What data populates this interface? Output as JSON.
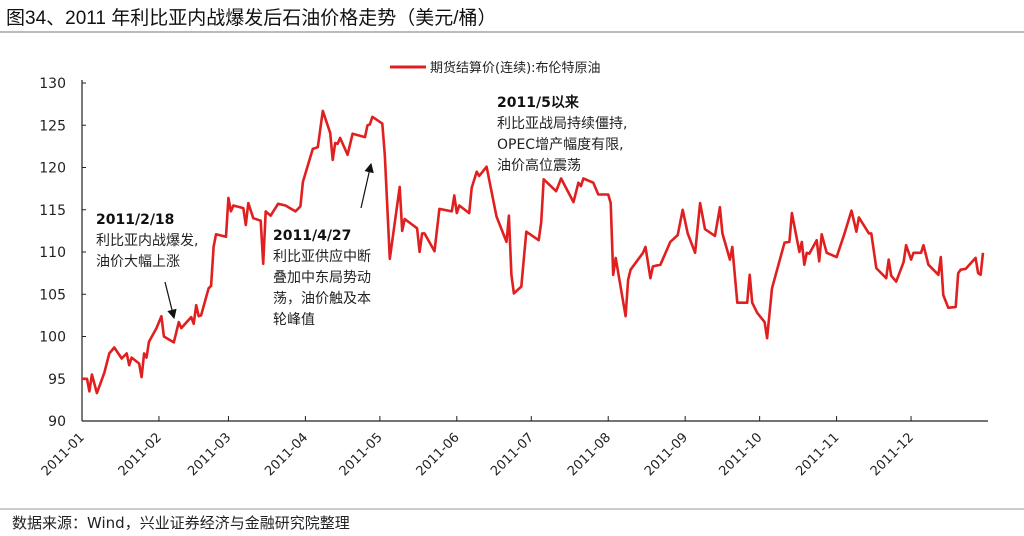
{
  "title": "图34、2011 年利比亚内战爆发后石油价格走势（美元/桶）",
  "footer": "数据来源：Wind，兴业证券经济与金融研究院整理",
  "chart_data": {
    "type": "line",
    "title": "图34、2011 年利比亚内战爆发后石油价格走势（美元/桶）",
    "xlabel": "",
    "ylabel": "",
    "ylim": [
      90,
      130
    ],
    "yticks": [
      90,
      95,
      100,
      105,
      110,
      115,
      120,
      125,
      130
    ],
    "xlim": [
      "2011-01-01",
      "2012-01-01"
    ],
    "xticks": [
      "2011-01",
      "2011-02",
      "2011-03",
      "2011-04",
      "2011-05",
      "2011-06",
      "2011-07",
      "2011-08",
      "2011-09",
      "2011-10",
      "2011-11",
      "2011-12"
    ],
    "grid": false,
    "legend": "top-center",
    "series": [
      {
        "name": "期货结算价(连续):布伦特原油",
        "color": "#e02020",
        "points": [
          [
            "2011-01-01",
            95.0
          ],
          [
            "2011-01-03",
            95.0
          ],
          [
            "2011-01-04",
            93.5
          ],
          [
            "2011-01-05",
            95.5
          ],
          [
            "2011-01-07",
            93.3
          ],
          [
            "2011-01-10",
            95.7
          ],
          [
            "2011-01-12",
            98.0
          ],
          [
            "2011-01-14",
            98.7
          ],
          [
            "2011-01-17",
            97.4
          ],
          [
            "2011-01-19",
            98.0
          ],
          [
            "2011-01-20",
            96.6
          ],
          [
            "2011-01-21",
            97.5
          ],
          [
            "2011-01-24",
            96.8
          ],
          [
            "2011-01-25",
            95.2
          ],
          [
            "2011-01-26",
            98.0
          ],
          [
            "2011-01-27",
            97.5
          ],
          [
            "2011-01-28",
            99.4
          ],
          [
            "2011-01-31",
            101.0
          ],
          [
            "2011-02-02",
            102.4
          ],
          [
            "2011-02-03",
            100.0
          ],
          [
            "2011-02-07",
            99.3
          ],
          [
            "2011-02-09",
            101.7
          ],
          [
            "2011-02-10",
            101.0
          ],
          [
            "2011-02-14",
            102.3
          ],
          [
            "2011-02-15",
            101.5
          ],
          [
            "2011-02-16",
            103.7
          ],
          [
            "2011-02-17",
            102.4
          ],
          [
            "2011-02-18",
            102.5
          ],
          [
            "2011-02-21",
            105.7
          ],
          [
            "2011-02-22",
            106.0
          ],
          [
            "2011-02-23",
            110.6
          ],
          [
            "2011-02-24",
            112.1
          ],
          [
            "2011-02-28",
            111.8
          ],
          [
            "2011-03-01",
            116.4
          ],
          [
            "2011-03-02",
            114.8
          ],
          [
            "2011-03-03",
            115.5
          ],
          [
            "2011-03-07",
            115.2
          ],
          [
            "2011-03-08",
            113.2
          ],
          [
            "2011-03-09",
            115.8
          ],
          [
            "2011-03-11",
            114.0
          ],
          [
            "2011-03-14",
            113.7
          ],
          [
            "2011-03-15",
            108.6
          ],
          [
            "2011-03-16",
            114.8
          ],
          [
            "2011-03-18",
            114.3
          ],
          [
            "2011-03-21",
            115.7
          ],
          [
            "2011-03-24",
            115.5
          ],
          [
            "2011-03-28",
            114.8
          ],
          [
            "2011-03-30",
            115.4
          ],
          [
            "2011-03-31",
            118.3
          ],
          [
            "2011-04-04",
            122.2
          ],
          [
            "2011-04-06",
            122.4
          ],
          [
            "2011-04-08",
            126.7
          ],
          [
            "2011-04-11",
            124.1
          ],
          [
            "2011-04-12",
            120.9
          ],
          [
            "2011-04-13",
            122.9
          ],
          [
            "2011-04-14",
            122.8
          ],
          [
            "2011-04-15",
            123.5
          ],
          [
            "2011-04-18",
            121.5
          ],
          [
            "2011-04-20",
            124.0
          ],
          [
            "2011-04-25",
            123.6
          ],
          [
            "2011-04-26",
            125.0
          ],
          [
            "2011-04-27",
            125.1
          ],
          [
            "2011-04-28",
            126.0
          ],
          [
            "2011-05-02",
            125.2
          ],
          [
            "2011-05-03",
            121.5
          ],
          [
            "2011-05-05",
            109.2
          ],
          [
            "2011-05-09",
            117.7
          ],
          [
            "2011-05-10",
            112.5
          ],
          [
            "2011-05-11",
            113.9
          ],
          [
            "2011-05-16",
            112.8
          ],
          [
            "2011-05-17",
            110.0
          ],
          [
            "2011-05-18",
            112.2
          ],
          [
            "2011-05-19",
            112.2
          ],
          [
            "2011-05-23",
            110.1
          ],
          [
            "2011-05-25",
            115.1
          ],
          [
            "2011-05-30",
            114.8
          ],
          [
            "2011-05-31",
            116.7
          ],
          [
            "2011-06-01",
            114.6
          ],
          [
            "2011-06-02",
            115.5
          ],
          [
            "2011-06-06",
            114.6
          ],
          [
            "2011-06-07",
            117.6
          ],
          [
            "2011-06-09",
            119.5
          ],
          [
            "2011-06-10",
            119.0
          ],
          [
            "2011-06-13",
            120.1
          ],
          [
            "2011-06-17",
            114.2
          ],
          [
            "2011-06-21",
            111.2
          ],
          [
            "2011-06-22",
            114.3
          ],
          [
            "2011-06-23",
            107.3
          ],
          [
            "2011-06-24",
            105.1
          ],
          [
            "2011-06-27",
            105.9
          ],
          [
            "2011-06-29",
            112.4
          ],
          [
            "2011-07-04",
            111.4
          ],
          [
            "2011-07-05",
            113.5
          ],
          [
            "2011-07-06",
            118.6
          ],
          [
            "2011-07-11",
            117.2
          ],
          [
            "2011-07-13",
            118.7
          ],
          [
            "2011-07-18",
            115.9
          ],
          [
            "2011-07-20",
            118.2
          ],
          [
            "2011-07-21",
            117.8
          ],
          [
            "2011-07-22",
            118.7
          ],
          [
            "2011-07-26",
            118.2
          ],
          [
            "2011-07-28",
            116.8
          ],
          [
            "2011-08-01",
            116.8
          ],
          [
            "2011-08-02",
            115.8
          ],
          [
            "2011-08-03",
            107.3
          ],
          [
            "2011-08-04",
            109.3
          ],
          [
            "2011-08-08",
            102.4
          ],
          [
            "2011-08-09",
            106.7
          ],
          [
            "2011-08-10",
            107.9
          ],
          [
            "2011-08-15",
            109.9
          ],
          [
            "2011-08-16",
            110.6
          ],
          [
            "2011-08-18",
            106.9
          ],
          [
            "2011-08-19",
            108.3
          ],
          [
            "2011-08-22",
            108.5
          ],
          [
            "2011-08-26",
            111.2
          ],
          [
            "2011-08-29",
            112.0
          ],
          [
            "2011-08-31",
            115.0
          ],
          [
            "2011-09-02",
            112.2
          ],
          [
            "2011-09-05",
            109.9
          ],
          [
            "2011-09-07",
            115.8
          ],
          [
            "2011-09-09",
            112.7
          ],
          [
            "2011-09-13",
            111.9
          ],
          [
            "2011-09-15",
            115.3
          ],
          [
            "2011-09-16",
            112.2
          ],
          [
            "2011-09-19",
            109.1
          ],
          [
            "2011-09-20",
            110.6
          ],
          [
            "2011-09-22",
            104.0
          ],
          [
            "2011-09-26",
            104.0
          ],
          [
            "2011-09-27",
            107.3
          ],
          [
            "2011-09-28",
            104.0
          ],
          [
            "2011-09-30",
            102.8
          ],
          [
            "2011-10-03",
            101.7
          ],
          [
            "2011-10-04",
            99.8
          ],
          [
            "2011-10-06",
            105.7
          ],
          [
            "2011-10-11",
            111.1
          ],
          [
            "2011-10-13",
            111.2
          ],
          [
            "2011-10-14",
            114.6
          ],
          [
            "2011-10-17",
            110.0
          ],
          [
            "2011-10-18",
            111.2
          ],
          [
            "2011-10-19",
            108.5
          ],
          [
            "2011-10-20",
            109.9
          ],
          [
            "2011-10-21",
            109.8
          ],
          [
            "2011-10-24",
            111.4
          ],
          [
            "2011-10-25",
            108.9
          ],
          [
            "2011-10-26",
            112.1
          ],
          [
            "2011-10-28",
            109.9
          ],
          [
            "2011-11-01",
            109.4
          ],
          [
            "2011-11-04",
            112.0
          ],
          [
            "2011-11-07",
            114.9
          ],
          [
            "2011-11-09",
            112.4
          ],
          [
            "2011-11-10",
            114.1
          ],
          [
            "2011-11-14",
            112.2
          ],
          [
            "2011-11-15",
            112.2
          ],
          [
            "2011-11-17",
            108.1
          ],
          [
            "2011-11-21",
            106.9
          ],
          [
            "2011-11-22",
            109.1
          ],
          [
            "2011-11-23",
            107.2
          ],
          [
            "2011-11-25",
            106.5
          ],
          [
            "2011-11-28",
            108.8
          ],
          [
            "2011-11-29",
            110.8
          ],
          [
            "2011-12-01",
            109.1
          ],
          [
            "2011-12-02",
            109.9
          ],
          [
            "2011-12-05",
            109.9
          ],
          [
            "2011-12-06",
            110.8
          ],
          [
            "2011-12-08",
            108.5
          ],
          [
            "2011-12-12",
            107.3
          ],
          [
            "2011-12-13",
            109.4
          ],
          [
            "2011-12-14",
            104.9
          ],
          [
            "2011-12-16",
            103.4
          ],
          [
            "2011-12-19",
            103.5
          ],
          [
            "2011-12-20",
            107.5
          ],
          [
            "2011-12-21",
            107.9
          ],
          [
            "2011-12-23",
            108.0
          ],
          [
            "2011-12-27",
            109.3
          ],
          [
            "2011-12-28",
            107.5
          ],
          [
            "2011-12-29",
            107.3
          ],
          [
            "2011-12-30",
            109.9
          ]
        ]
      }
    ],
    "annotations": [
      {
        "date_label": "2011/2/18",
        "lines": [
          "利比亚内战爆发,",
          "油价大幅上涨"
        ],
        "arrow_to": [
          "2011-02-18",
          102.5
        ]
      },
      {
        "date_label": "2011/4/27",
        "lines": [
          "利比亚供应中断",
          "叠加中东局势动",
          "荡，油价触及本",
          "轮峰值"
        ],
        "arrow_to": [
          "2011-04-27",
          125.1
        ]
      },
      {
        "date_label": "2011/5以来",
        "lines": [
          "利比亚战局持续僵持,",
          "OPEC增产幅度有限,",
          "油价高位震荡"
        ]
      }
    ]
  }
}
